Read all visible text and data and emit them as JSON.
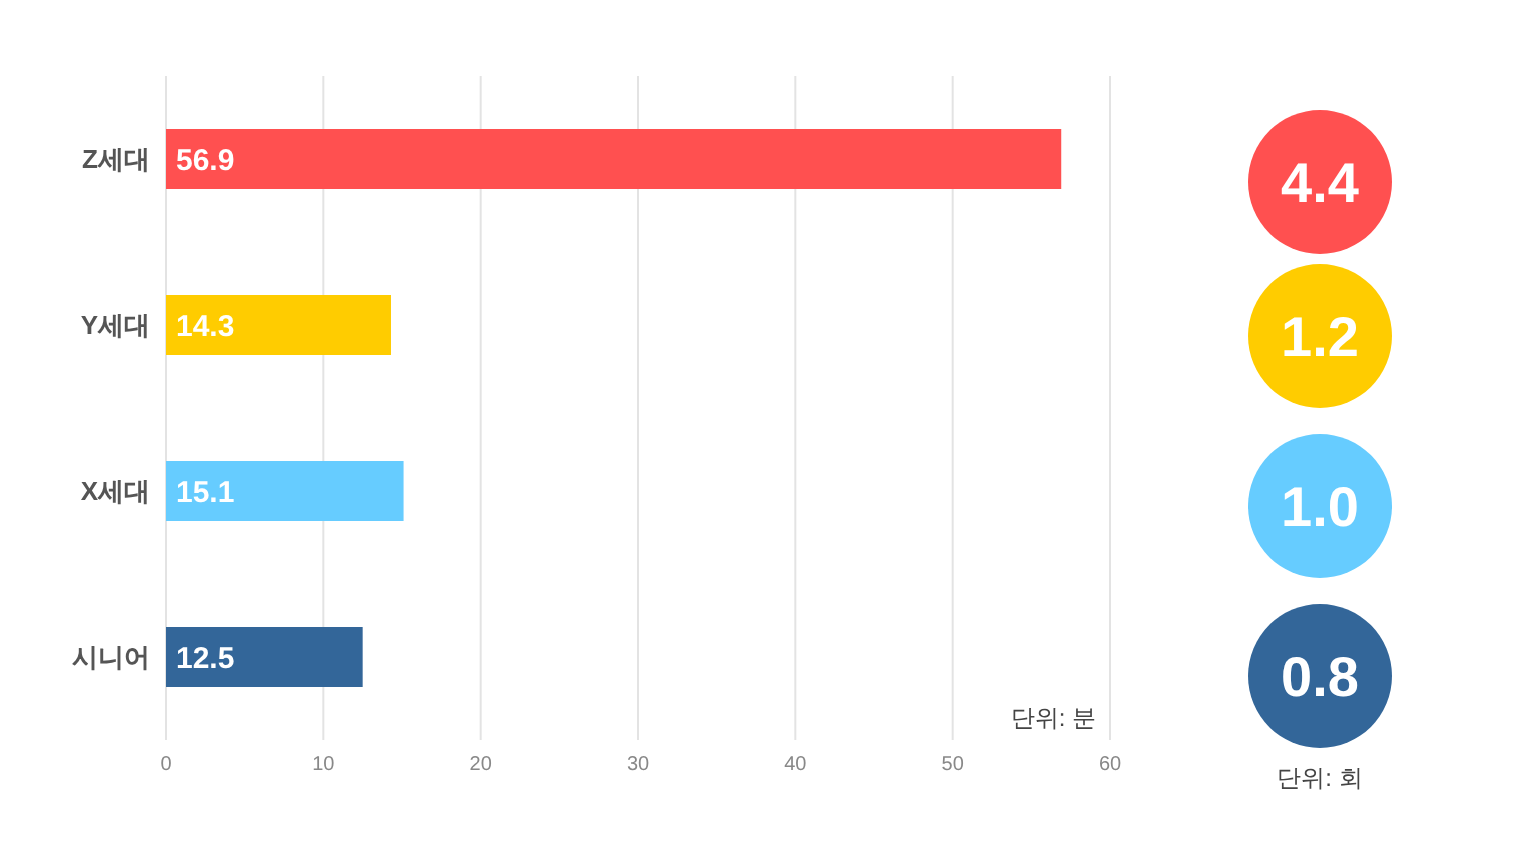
{
  "chart_data": [
    {
      "type": "bar",
      "orientation": "horizontal",
      "categories": [
        "Z세대",
        "Y세대",
        "X세대",
        "시니어"
      ],
      "values": [
        56.9,
        14.3,
        15.1,
        12.5
      ],
      "colors": [
        "#ff5050",
        "#ffcc00",
        "#66ccff",
        "#336699"
      ],
      "xlim": [
        0,
        60
      ],
      "xticks": [
        0,
        10,
        20,
        30,
        40,
        50,
        60
      ],
      "grid": "x",
      "data_labels": true,
      "annotations": [
        "단위: 분"
      ]
    },
    {
      "type": "other",
      "values": [
        4.4,
        1.2,
        1.0,
        0.8
      ],
      "value_labels": [
        "4.4",
        "1.2",
        "1.0",
        "0.8"
      ],
      "colors": [
        "#ff5050",
        "#ffcc00",
        "#66ccff",
        "#336699"
      ],
      "annotations": [
        "단위: 회"
      ]
    }
  ]
}
